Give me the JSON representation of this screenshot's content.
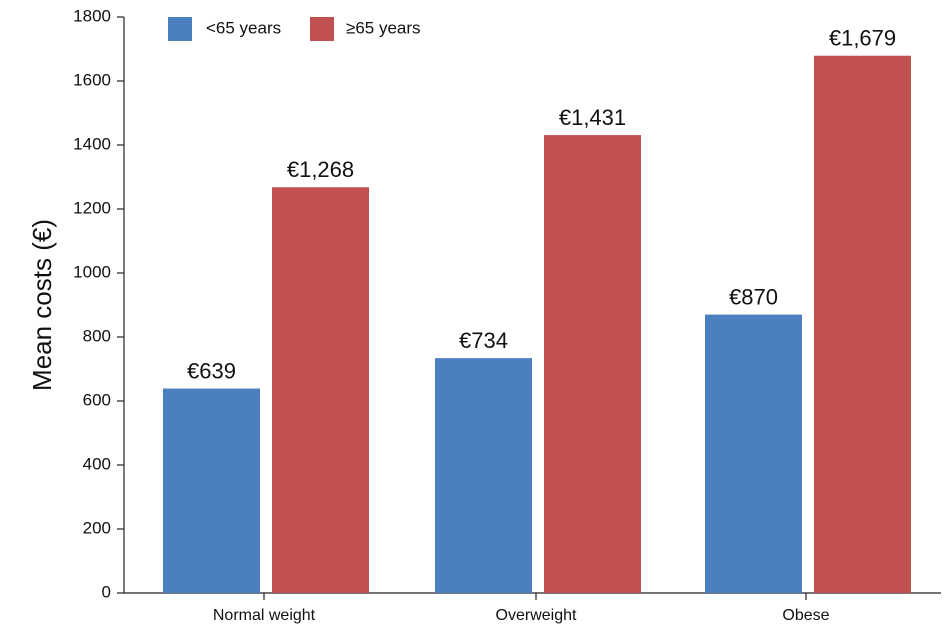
{
  "chart_data": {
    "type": "bar",
    "categories": [
      "Normal weight",
      "Overweight",
      "Obese"
    ],
    "series": [
      {
        "name": "<65 years",
        "values": [
          639,
          734,
          870
        ],
        "labels": [
          "€639",
          "€734",
          "€870"
        ],
        "color": "#4b7fbf"
      },
      {
        "name": "≥65 years",
        "values": [
          1268,
          1431,
          1679
        ],
        "labels": [
          "€1,268",
          "€1,431",
          "€1,679"
        ],
        "color": "#c25050"
      }
    ],
    "title": "",
    "xlabel": "",
    "ylabel": "Mean costs (€)",
    "ylim": [
      0,
      1800
    ],
    "yticks": [
      0,
      200,
      400,
      600,
      800,
      1000,
      1200,
      1400,
      1600,
      1800
    ],
    "grid": false,
    "legend_position": "top-left"
  }
}
